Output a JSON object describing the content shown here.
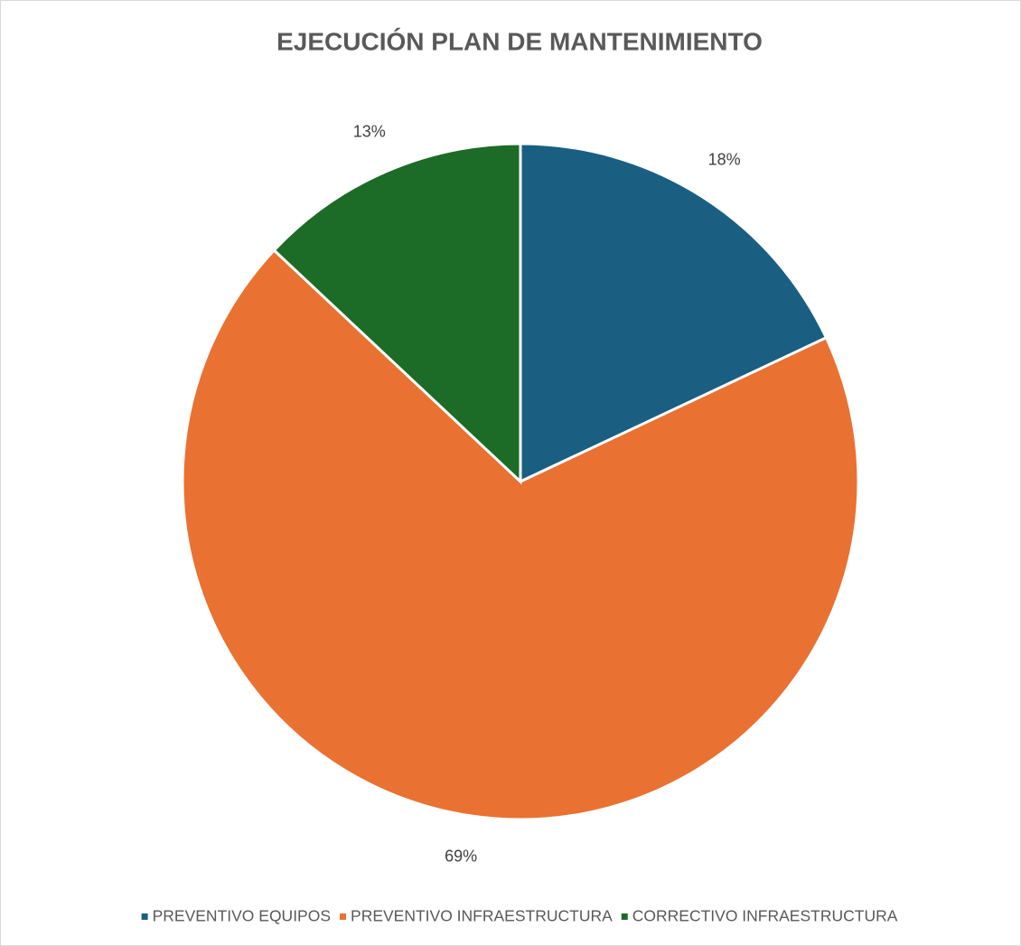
{
  "chart_data": {
    "type": "pie",
    "title": "EJECUCIÓN PLAN DE MANTENIMIENTO",
    "categories": [
      "PREVENTIVO EQUIPOS",
      "PREVENTIVO INFRAESTRUCTURA",
      "CORRECTIVO INFRAESTRUCTURA"
    ],
    "values": [
      18,
      69,
      13
    ],
    "value_labels": [
      "18%",
      "69%",
      "13%"
    ],
    "colors": [
      "#1a5f82",
      "#e97132",
      "#1c6b27"
    ],
    "legend": "bottom"
  }
}
